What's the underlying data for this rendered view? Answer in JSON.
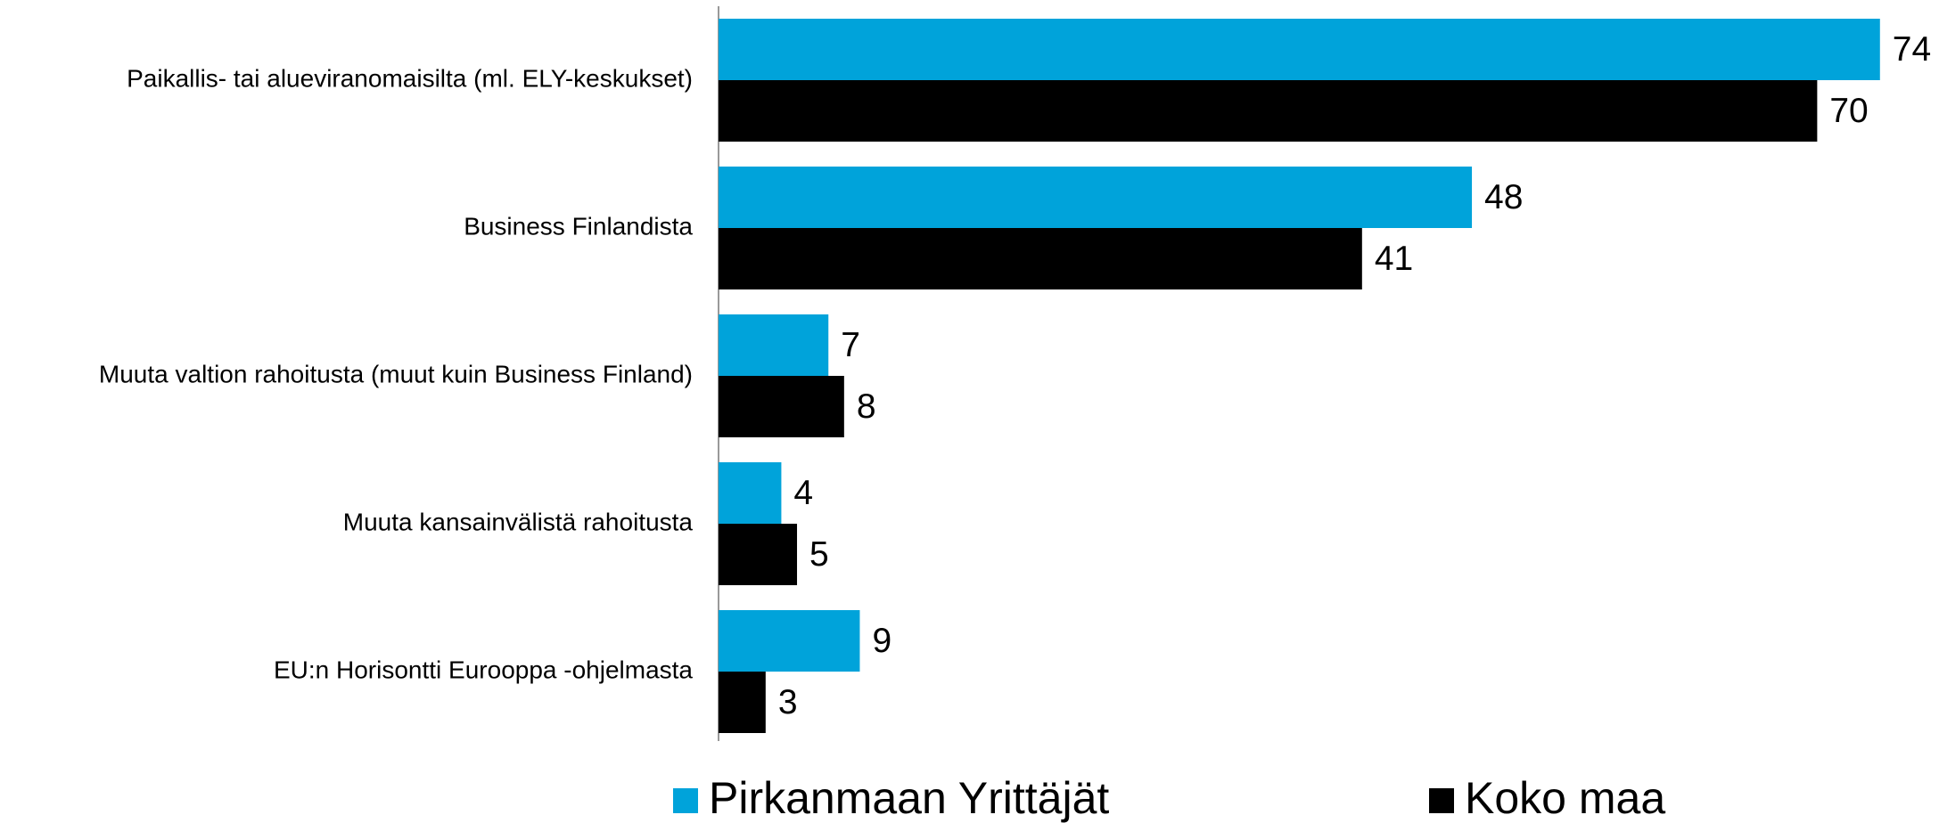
{
  "chart_data": {
    "type": "hbar",
    "categories": [
      "Paikallis- tai alueviranomaisilta (ml. ELY-keskukset)",
      "Business Finlandista",
      "Muuta valtion rahoitusta (muut kuin Business Finland)",
      "Muuta kansainvälistä rahoitusta",
      "EU:n Horisontti Eurooppa -ohjelmasta"
    ],
    "series": [
      {
        "name": "Pirkanmaan Yrittäjät",
        "color": "#00a3da",
        "values": [
          74,
          48,
          7,
          4,
          9
        ]
      },
      {
        "name": "Koko maa",
        "color": "#000000",
        "values": [
          70,
          41,
          8,
          5,
          3
        ]
      }
    ],
    "xlim": [
      0,
      76
    ],
    "legend": "bottom"
  }
}
